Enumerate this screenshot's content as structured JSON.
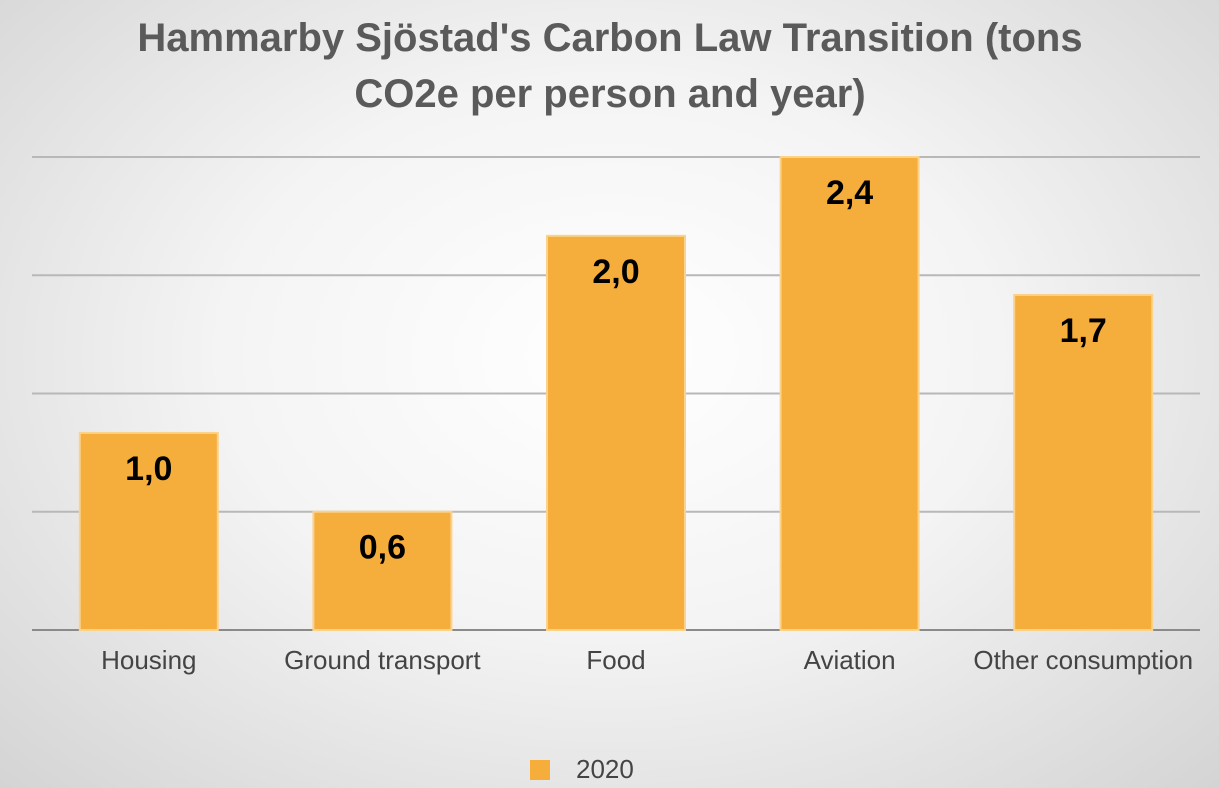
{
  "chart_data": {
    "type": "bar",
    "title": "Hammarby Sjöstad's Carbon Law Transition (tons CO2e per person and year)",
    "categories": [
      "Housing",
      "Ground transport",
      "Food",
      "Aviation",
      "Other consumption"
    ],
    "series": [
      {
        "name": "2020",
        "color": "#f5ad3c",
        "values": [
          1.0,
          0.6,
          2.0,
          2.4,
          1.7
        ],
        "value_labels": [
          "1,0",
          "0,6",
          "2,0",
          "2,4",
          "1,7"
        ]
      }
    ],
    "ylim": [
      0,
      2.4
    ],
    "yticks": [
      0,
      0.6,
      1.2,
      1.8,
      2.4
    ],
    "grid": true,
    "legend": "bottom"
  }
}
